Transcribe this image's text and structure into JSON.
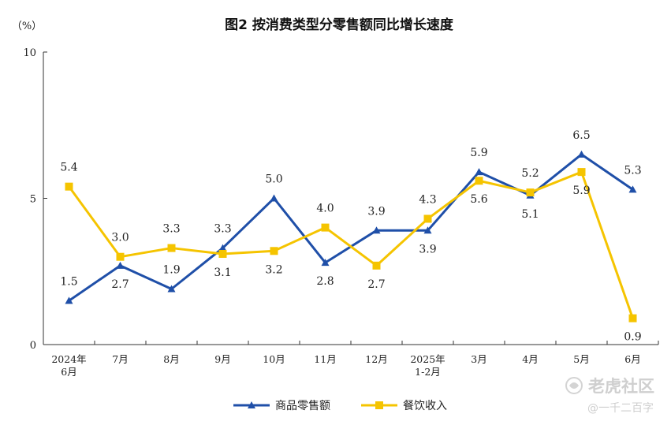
{
  "title": "图2  按消费类型分零售额同比增长速度",
  "unit_label": "（%）",
  "chart_data": {
    "type": "line",
    "title": "图2  按消费类型分零售额同比增长速度",
    "ylabel": "（%）",
    "ylim": [
      0,
      10
    ],
    "yticks": [
      0,
      5,
      10
    ],
    "categories": [
      [
        "2024年",
        "6月"
      ],
      [
        "7月"
      ],
      [
        "8月"
      ],
      [
        "9月"
      ],
      [
        "10月"
      ],
      [
        "11月"
      ],
      [
        "12月"
      ],
      [
        "2025年",
        "1-2月"
      ],
      [
        "3月"
      ],
      [
        "4月"
      ],
      [
        "5月"
      ],
      [
        "6月"
      ]
    ],
    "series": [
      {
        "name": "商品零售额",
        "color": "#1f4fa8",
        "marker": "triangle",
        "values": [
          1.5,
          2.7,
          1.9,
          3.3,
          5.0,
          2.8,
          3.9,
          3.9,
          5.9,
          5.1,
          6.5,
          5.3
        ],
        "label_pos": [
          "above",
          "below",
          "above",
          "above",
          "above",
          "below",
          "above",
          "below",
          "above",
          "below",
          "above",
          "above"
        ]
      },
      {
        "name": "餐饮收入",
        "color": "#f5c400",
        "marker": "square",
        "values": [
          5.4,
          3.0,
          3.3,
          3.1,
          3.2,
          4.0,
          2.7,
          4.3,
          5.6,
          5.2,
          5.9,
          0.9
        ],
        "label_pos": [
          "above",
          "above",
          "above",
          "below",
          "below",
          "above",
          "below",
          "above",
          "below",
          "above",
          "below",
          "below"
        ]
      }
    ],
    "legend_position": "bottom-center",
    "grid": false
  },
  "watermark": {
    "brand": "老虎社区",
    "user": "@一千二百字"
  }
}
